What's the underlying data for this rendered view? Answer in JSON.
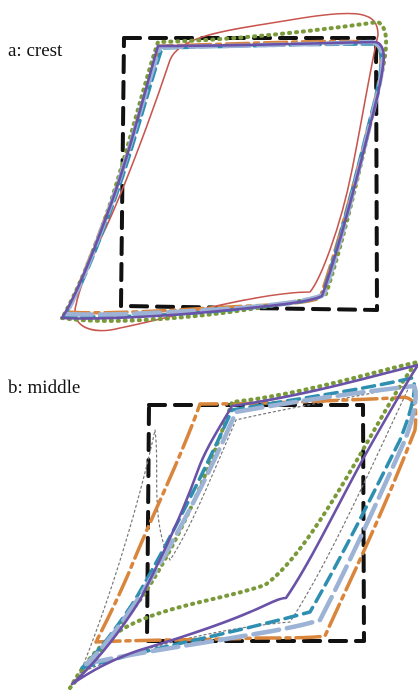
{
  "panels": {
    "a": {
      "label": "a: crest"
    },
    "b": {
      "label": "b: middle"
    }
  },
  "colors": {
    "black_dashed": "#111111",
    "orange": "#d9853b",
    "teal": "#2e8fb0",
    "purple": "#6a52a8",
    "lightblue": "#9db3d6",
    "olive": "#7a9a3a",
    "red": "#c8554e",
    "gray": "#777777"
  }
}
